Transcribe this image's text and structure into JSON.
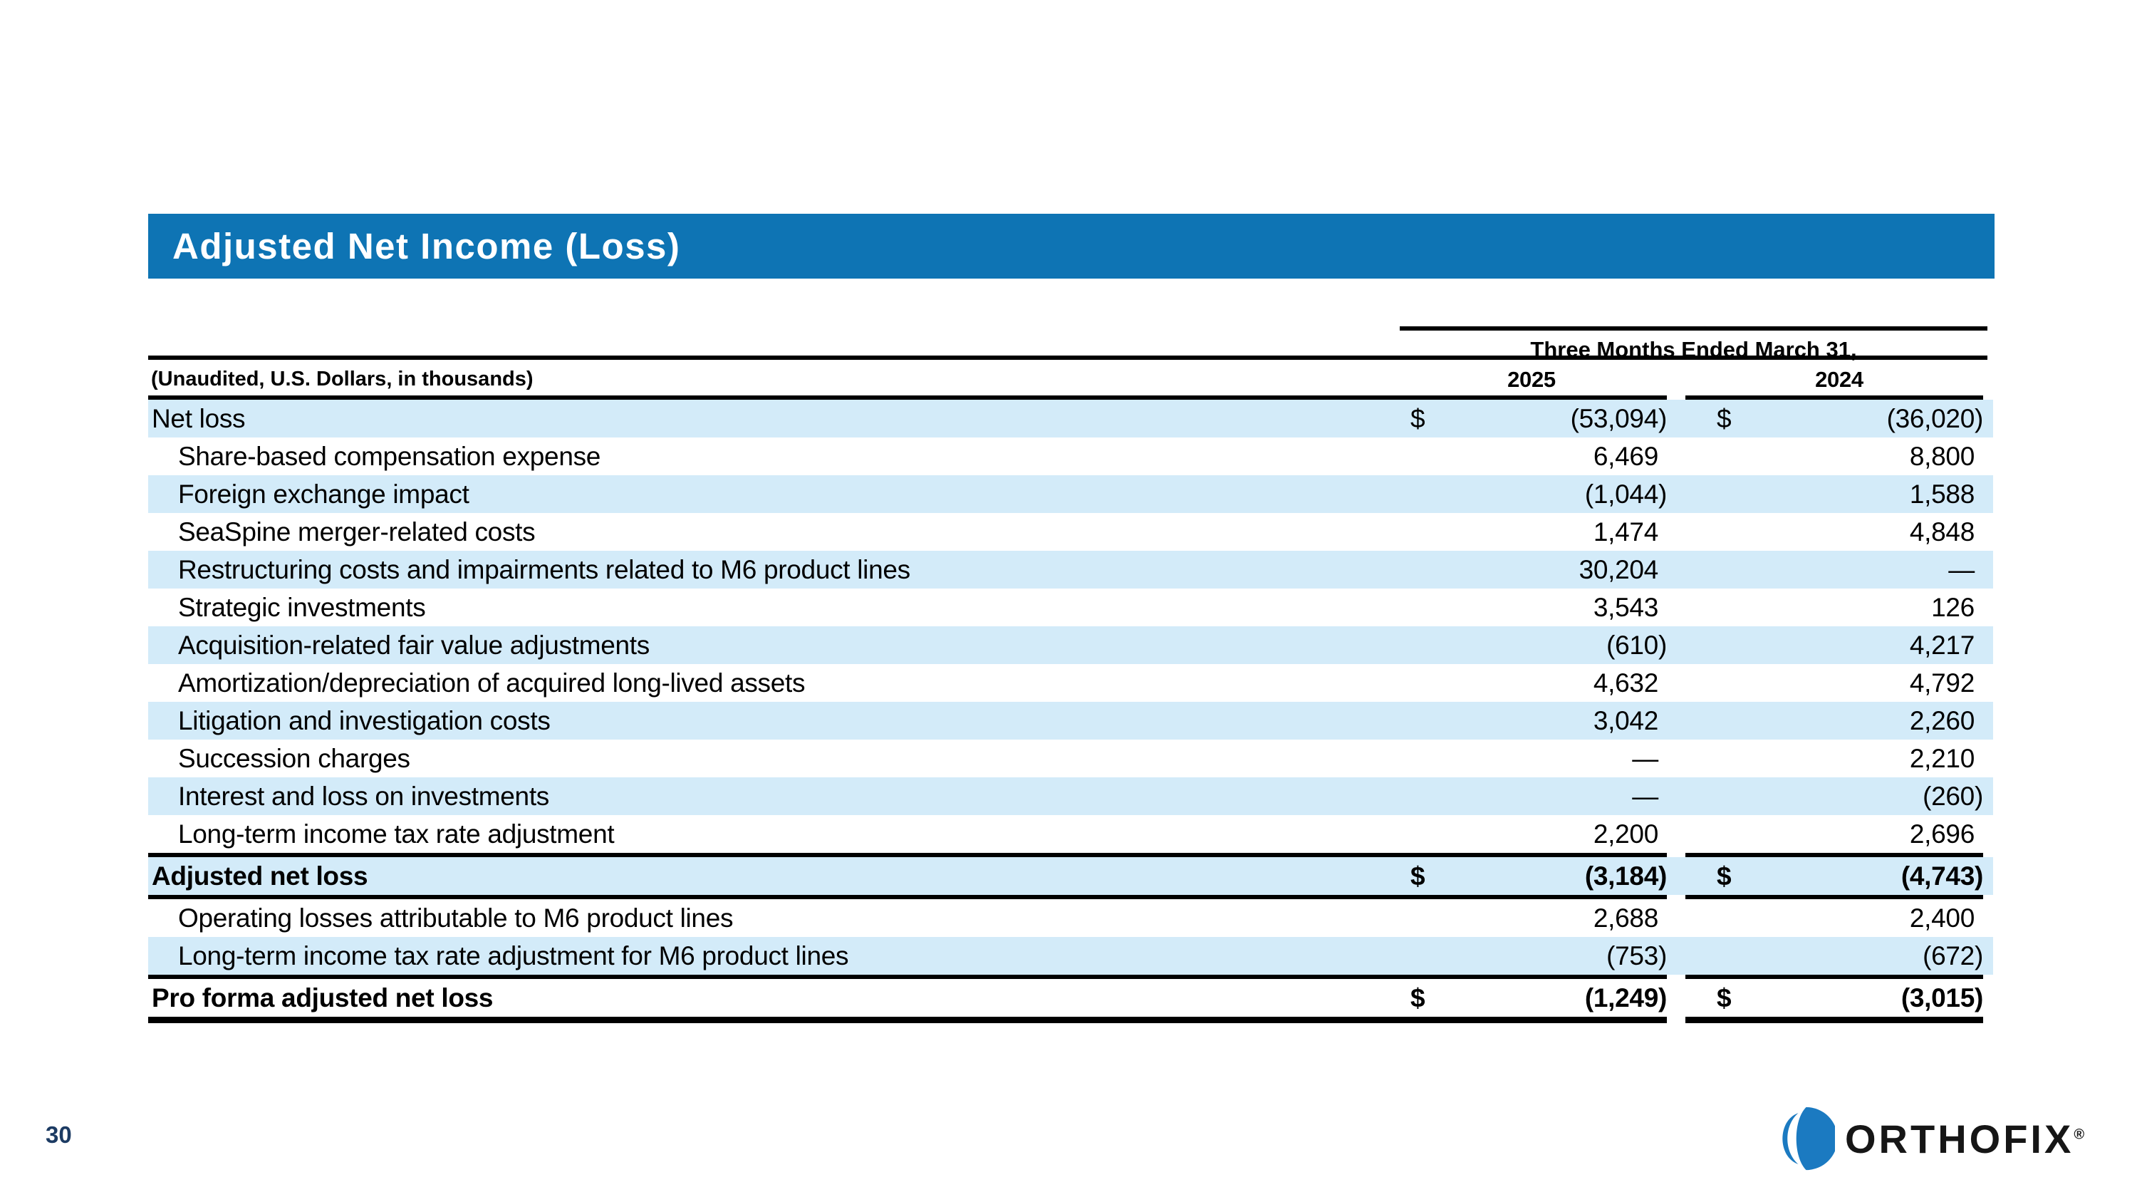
{
  "slide": {
    "title": "Adjusted Net Income (Loss)",
    "page_number": "30",
    "logo_text": "ORTHOFIX",
    "logo_reg": "®"
  },
  "table": {
    "period_header": "Three Months Ended March 31,",
    "unit_note": "(Unaudited, U.S. Dollars, in thousands)",
    "col_years": [
      "2025",
      "2024"
    ],
    "rows": [
      {
        "label": "Net loss",
        "indent": false,
        "bold": false,
        "dollar": true,
        "v2025": "(53,094)",
        "v2024": "(36,020)",
        "shade": true,
        "rule_below": false
      },
      {
        "label": "Share-based compensation expense",
        "indent": true,
        "bold": false,
        "dollar": false,
        "v2025": "6,469",
        "v2024": "8,800",
        "shade": false,
        "rule_below": false
      },
      {
        "label": "Foreign exchange impact",
        "indent": true,
        "bold": false,
        "dollar": false,
        "v2025": "(1,044)",
        "v2024": "1,588",
        "shade": true,
        "rule_below": false
      },
      {
        "label": "SeaSpine merger-related costs",
        "indent": true,
        "bold": false,
        "dollar": false,
        "v2025": "1,474",
        "v2024": "4,848",
        "shade": false,
        "rule_below": false
      },
      {
        "label": "Restructuring costs and impairments related to M6 product lines",
        "indent": true,
        "bold": false,
        "dollar": false,
        "v2025": "30,204",
        "v2024": "—",
        "shade": true,
        "rule_below": false
      },
      {
        "label": "Strategic investments",
        "indent": true,
        "bold": false,
        "dollar": false,
        "v2025": "3,543",
        "v2024": "126",
        "shade": false,
        "rule_below": false
      },
      {
        "label": "Acquisition-related fair value adjustments",
        "indent": true,
        "bold": false,
        "dollar": false,
        "v2025": "(610)",
        "v2024": "4,217",
        "shade": true,
        "rule_below": false
      },
      {
        "label": "Amortization/depreciation of acquired long-lived assets",
        "indent": true,
        "bold": false,
        "dollar": false,
        "v2025": "4,632",
        "v2024": "4,792",
        "shade": false,
        "rule_below": false
      },
      {
        "label": "Litigation and investigation costs",
        "indent": true,
        "bold": false,
        "dollar": false,
        "v2025": "3,042",
        "v2024": "2,260",
        "shade": true,
        "rule_below": false
      },
      {
        "label": "Succession charges",
        "indent": true,
        "bold": false,
        "dollar": false,
        "v2025": "—",
        "v2024": "2,210",
        "shade": false,
        "rule_below": false
      },
      {
        "label": "Interest and loss on investments",
        "indent": true,
        "bold": false,
        "dollar": false,
        "v2025": "—",
        "v2024": "(260)",
        "shade": true,
        "rule_below": false
      },
      {
        "label": "Long-term income tax rate adjustment",
        "indent": true,
        "bold": false,
        "dollar": false,
        "v2025": "2,200",
        "v2024": "2,696",
        "shade": false,
        "rule_below": true
      },
      {
        "label": "Adjusted net loss",
        "indent": false,
        "bold": true,
        "dollar": true,
        "v2025": "(3,184)",
        "v2024": "(4,743)",
        "shade": true,
        "rule_below": true
      },
      {
        "label": "Operating losses attributable to M6 product lines",
        "indent": true,
        "bold": false,
        "dollar": false,
        "v2025": "2,688",
        "v2024": "2,400",
        "shade": false,
        "rule_below": false
      },
      {
        "label": "Long-term income tax rate adjustment for M6 product lines",
        "indent": true,
        "bold": false,
        "dollar": false,
        "v2025": "(753)",
        "v2024": "(672)",
        "shade": true,
        "rule_below": true
      },
      {
        "label": "Pro forma adjusted net loss",
        "indent": false,
        "bold": true,
        "dollar": true,
        "v2025": "(1,249)",
        "v2024": "(3,015)",
        "shade": false,
        "rule_below": false,
        "thick_rule_below": true
      }
    ]
  },
  "colors": {
    "header_bar": "#0e74b4",
    "row_highlight": "#d3ebf9",
    "logo_blue": "#1b7ac1",
    "page_number": "#1c3b63"
  }
}
